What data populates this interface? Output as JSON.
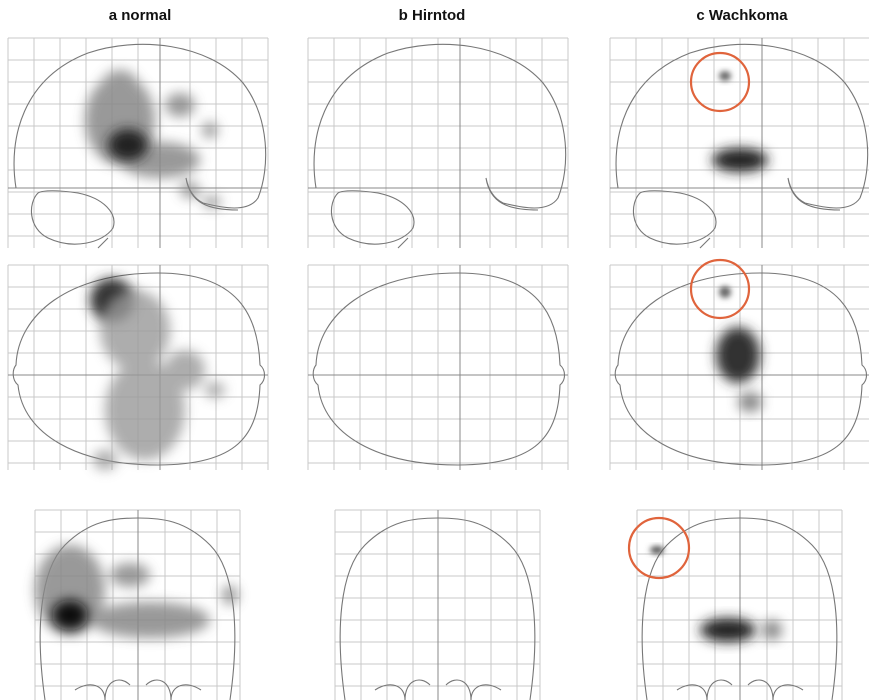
{
  "columns": [
    {
      "label": "a normal"
    },
    {
      "label": "b Hirntod"
    },
    {
      "label": "c Wachkoma"
    }
  ]
}
